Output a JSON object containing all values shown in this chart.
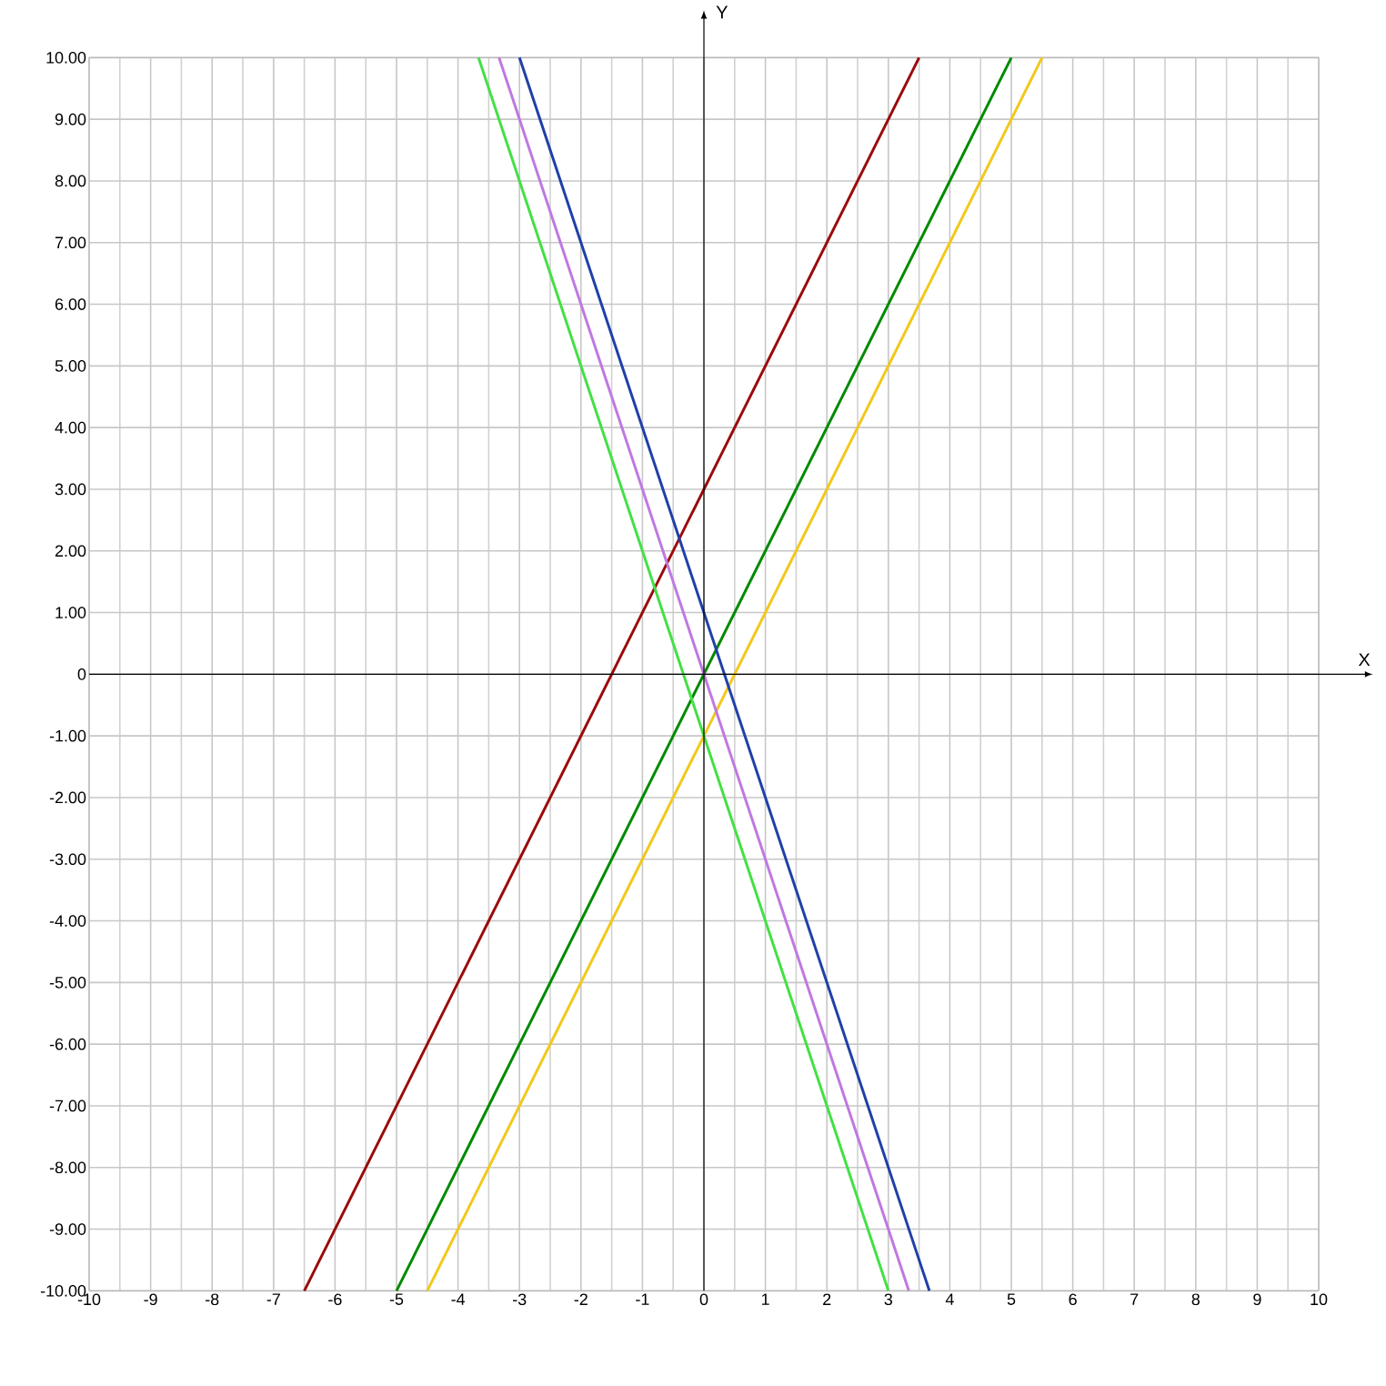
{
  "chart_data": {
    "type": "line",
    "xlabel": "X",
    "ylabel": "Y",
    "xlim": [
      -10,
      10
    ],
    "ylim": [
      -10,
      10
    ],
    "xticks": [
      -10,
      -9,
      -8,
      -7,
      -6,
      -5,
      -4,
      -3,
      -2,
      -1,
      0,
      1,
      2,
      3,
      4,
      5,
      6,
      7,
      8,
      9,
      10
    ],
    "yticks": [
      {
        "value": -10,
        "label": "-10.00"
      },
      {
        "value": -9,
        "label": "-9.00"
      },
      {
        "value": -8,
        "label": "-8.00"
      },
      {
        "value": -7,
        "label": "-7.00"
      },
      {
        "value": -6,
        "label": "-6.00"
      },
      {
        "value": -5,
        "label": "-5.00"
      },
      {
        "value": -4,
        "label": "-4.00"
      },
      {
        "value": -3,
        "label": "-3.00"
      },
      {
        "value": -2,
        "label": "-2.00"
      },
      {
        "value": -1,
        "label": "-1.00"
      },
      0,
      {
        "value": 1,
        "label": "1.00"
      },
      {
        "value": 2,
        "label": "2.00"
      },
      {
        "value": 3,
        "label": "3.00"
      },
      {
        "value": 4,
        "label": "4.00"
      },
      {
        "value": 5,
        "label": "5.00"
      },
      {
        "value": 6,
        "label": "6.00"
      },
      {
        "value": 7,
        "label": "7.00"
      },
      {
        "value": 8,
        "label": "8.00"
      },
      {
        "value": 9,
        "label": "9.00"
      },
      {
        "value": 10,
        "label": "10.00"
      }
    ],
    "grid": true,
    "marker": "none",
    "line_style": "solid",
    "series": [
      {
        "color": "#9b0a0a",
        "x": [
          -6.5,
          3.5
        ],
        "values": [
          -10,
          10
        ]
      },
      {
        "color": "#008a00",
        "x": [
          -5,
          5
        ],
        "values": [
          -10,
          10
        ]
      },
      {
        "color": "#f2c81a",
        "x": [
          -4.5,
          5.5
        ],
        "values": [
          -10,
          10
        ]
      },
      {
        "color": "#2040a8",
        "x": [
          -3,
          3.667
        ],
        "values": [
          10,
          -10
        ]
      },
      {
        "color": "#c078e0",
        "x": [
          -3.333,
          3.333
        ],
        "values": [
          10,
          -10
        ]
      },
      {
        "color": "#44e044",
        "x": [
          -3.667,
          3
        ],
        "values": [
          10,
          -10
        ]
      }
    ]
  }
}
